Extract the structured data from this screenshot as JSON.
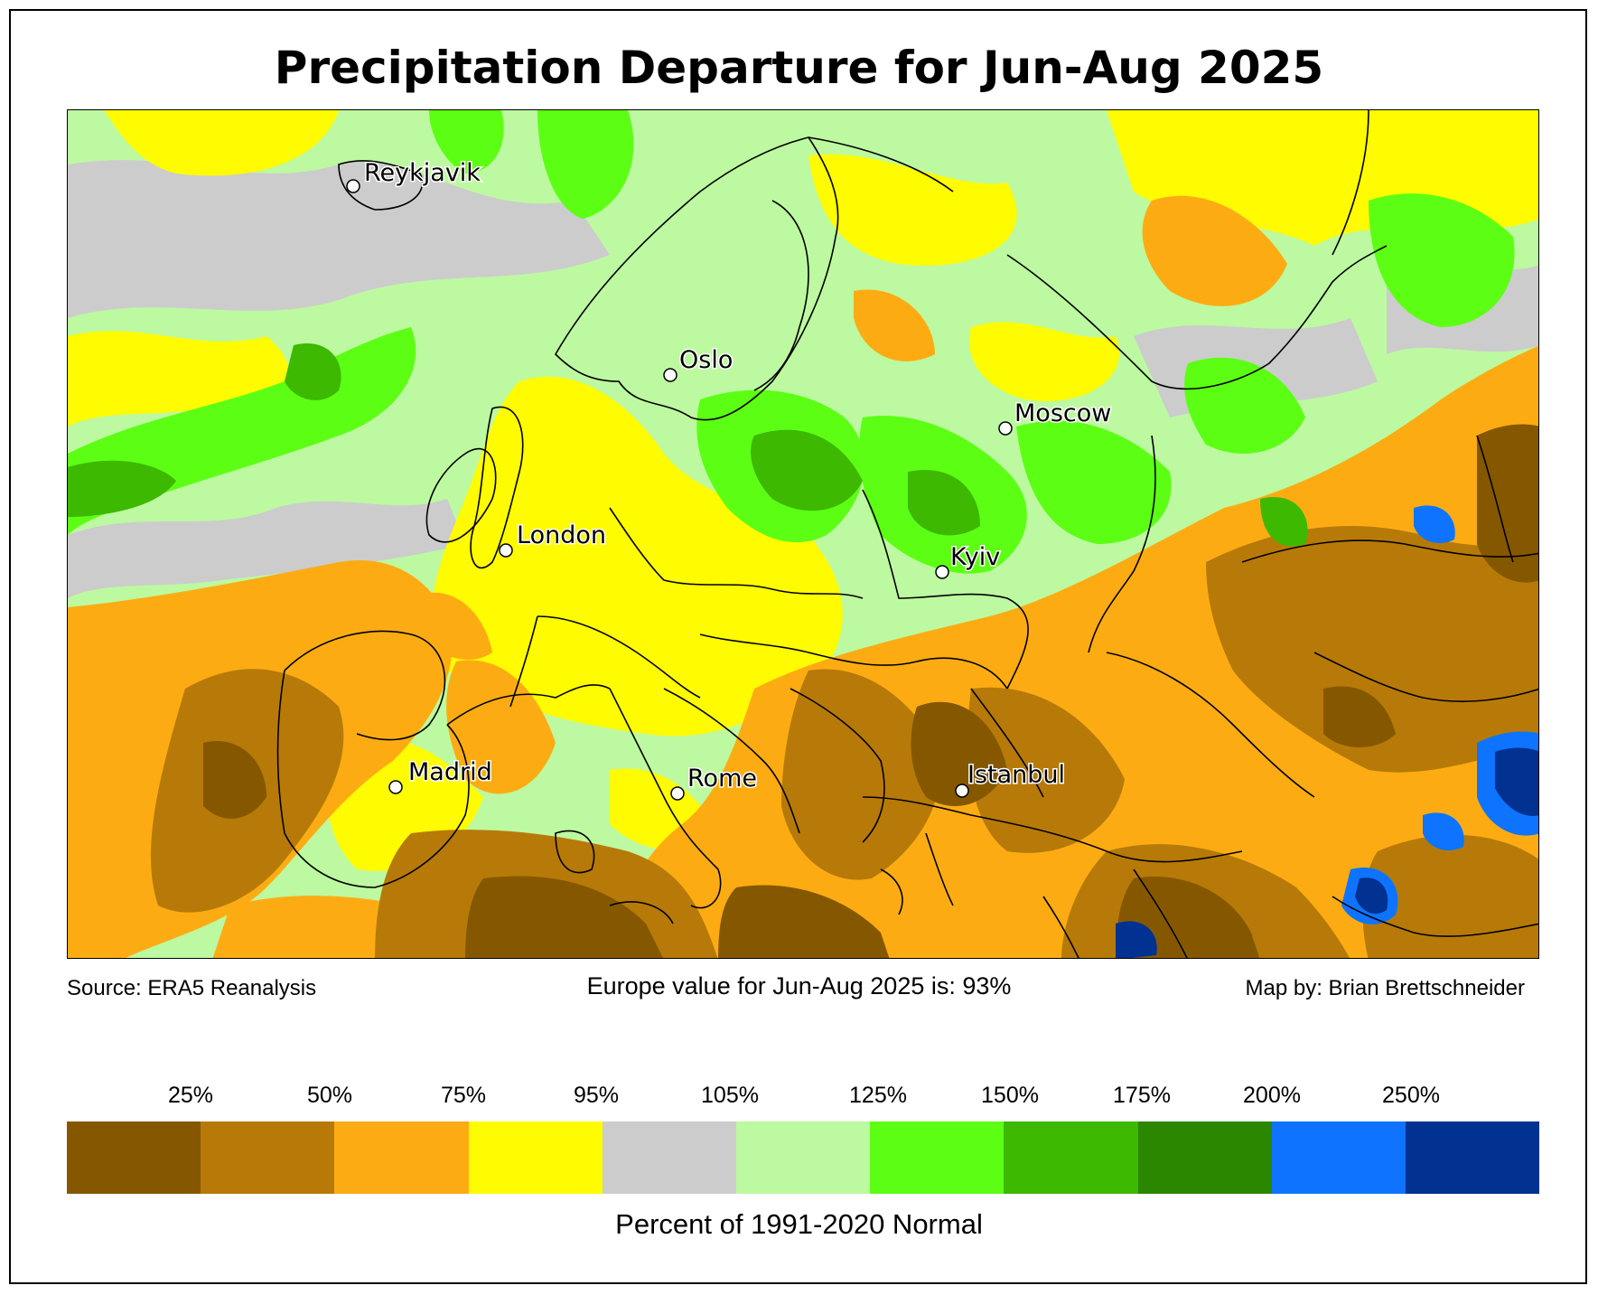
{
  "title": "Precipitation Departure for Jun-Aug 2025",
  "footer": {
    "source": "Source: ERA5 Reanalysis",
    "summary": "Europe value for Jun-Aug 2025 is: 93%",
    "credit": "Map by: Brian Brettschneider"
  },
  "colorbar": {
    "title": "Percent of 1991-2020 Normal",
    "ticks": [
      "25%",
      "50%",
      "75%",
      "95%",
      "105%",
      "125%",
      "150%",
      "175%",
      "200%",
      "250%"
    ],
    "colors": [
      "#855800",
      "#b77a08",
      "#fcac12",
      "#fffb00",
      "#cccccc",
      "#bdf9a0",
      "#5cff14",
      "#3cb900",
      "#2b8600",
      "#0e74ff",
      "#013191"
    ]
  },
  "cities": [
    {
      "name": "Reykjavik"
    },
    {
      "name": "Oslo"
    },
    {
      "name": "Moscow"
    },
    {
      "name": "London"
    },
    {
      "name": "Kyiv"
    },
    {
      "name": "Madrid"
    },
    {
      "name": "Rome"
    },
    {
      "name": "Istanbul"
    }
  ]
}
